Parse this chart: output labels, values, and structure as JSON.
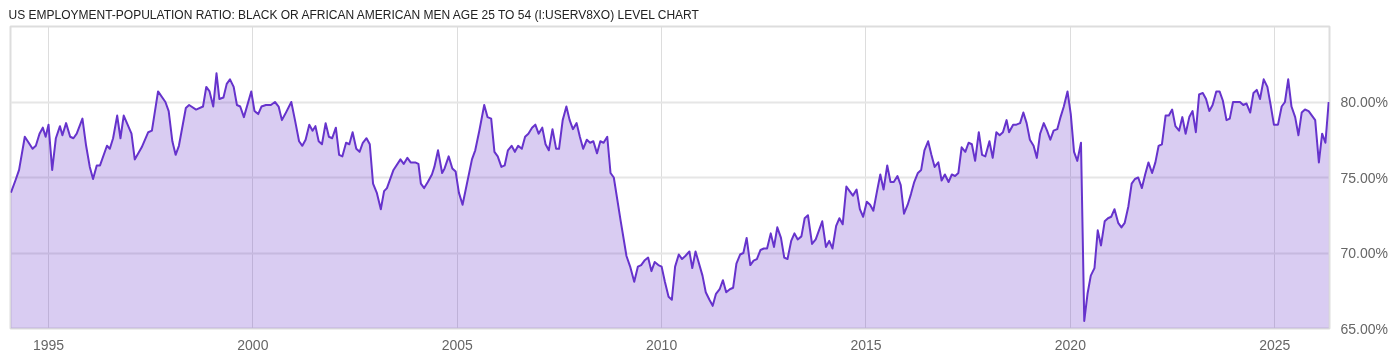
{
  "chart_data": {
    "type": "area",
    "title": "US EMPLOYMENT-POPULATION RATIO: BLACK OR AFRICAN AMERICAN MEN AGE 25 TO 54 (I:USERV8XO) LEVEL CHART",
    "x": [
      1994.08,
      1994.19,
      1994.28,
      1994.42,
      1994.61,
      1994.69,
      1994.78,
      1994.86,
      1994.93,
      1995.0,
      1995.09,
      1995.18,
      1995.28,
      1995.34,
      1995.43,
      1995.53,
      1995.61,
      1995.69,
      1995.83,
      1995.92,
      1996.01,
      1996.09,
      1996.18,
      1996.26,
      1996.43,
      1996.5,
      1996.58,
      1996.68,
      1996.76,
      1996.84,
      1997.03,
      1997.11,
      1997.28,
      1997.44,
      1997.53,
      1997.68,
      1997.86,
      1997.94,
      1998.03,
      1998.11,
      1998.19,
      1998.36,
      1998.44,
      1998.61,
      1998.78,
      1998.86,
      1998.94,
      1999.03,
      1999.11,
      1999.18,
      1999.28,
      1999.36,
      1999.44,
      1999.53,
      1999.61,
      1999.69,
      1999.78,
      1999.96,
      2000.04,
      2000.13,
      2000.21,
      2000.32,
      2000.44,
      2000.54,
      2000.63,
      2000.71,
      2000.79,
      2000.94,
      2001.03,
      2001.13,
      2001.21,
      2001.29,
      2001.38,
      2001.46,
      2001.53,
      2001.61,
      2001.69,
      2001.78,
      2001.86,
      2001.94,
      2002.03,
      2002.11,
      2002.19,
      2002.28,
      2002.36,
      2002.44,
      2002.53,
      2002.61,
      2002.69,
      2002.78,
      2002.86,
      2002.94,
      2003.03,
      2003.13,
      2003.21,
      2003.28,
      2003.44,
      2003.61,
      2003.69,
      2003.78,
      2003.86,
      2003.97,
      2004.05,
      2004.11,
      2004.19,
      2004.28,
      2004.38,
      2004.44,
      2004.53,
      2004.63,
      2004.69,
      2004.79,
      2004.88,
      2004.96,
      2005.04,
      2005.13,
      2005.23,
      2005.36,
      2005.44,
      2005.54,
      2005.66,
      2005.74,
      2005.83,
      2005.91,
      2005.99,
      2006.08,
      2006.16,
      2006.24,
      2006.33,
      2006.41,
      2006.49,
      2006.58,
      2006.66,
      2006.74,
      2006.83,
      2006.91,
      2006.99,
      2007.08,
      2007.16,
      2007.24,
      2007.33,
      2007.42,
      2007.49,
      2007.58,
      2007.67,
      2007.75,
      2007.83,
      2007.92,
      2008.0,
      2008.08,
      2008.17,
      2008.25,
      2008.33,
      2008.42,
      2008.5,
      2008.58,
      2008.67,
      2008.75,
      2008.83,
      2009.0,
      2009.14,
      2009.23,
      2009.33,
      2009.42,
      2009.5,
      2009.58,
      2009.67,
      2009.75,
      2009.83,
      2009.92,
      2010.0,
      2010.08,
      2010.17,
      2010.25,
      2010.33,
      2010.42,
      2010.5,
      2010.58,
      2010.68,
      2010.75,
      2010.83,
      2011.0,
      2011.08,
      2011.17,
      2011.25,
      2011.33,
      2011.42,
      2011.5,
      2011.58,
      2011.67,
      2011.75,
      2011.83,
      2011.92,
      2012.0,
      2012.08,
      2012.17,
      2012.25,
      2012.33,
      2012.42,
      2012.5,
      2012.58,
      2012.67,
      2012.75,
      2012.83,
      2012.92,
      2013.0,
      2013.08,
      2013.17,
      2013.25,
      2013.33,
      2013.42,
      2013.5,
      2013.58,
      2013.68,
      2013.77,
      2013.93,
      2014.02,
      2014.1,
      2014.18,
      2014.27,
      2014.35,
      2014.43,
      2014.52,
      2014.6,
      2014.68,
      2014.77,
      2014.85,
      2014.93,
      2015.02,
      2015.1,
      2015.18,
      2015.27,
      2015.35,
      2015.43,
      2015.52,
      2015.6,
      2015.68,
      2015.77,
      2015.85,
      2015.93,
      2016.02,
      2016.1,
      2016.18,
      2016.27,
      2016.35,
      2016.43,
      2016.52,
      2016.6,
      2016.68,
      2016.77,
      2016.85,
      2016.93,
      2017.02,
      2017.1,
      2017.18,
      2017.26,
      2017.34,
      2017.43,
      2017.51,
      2017.59,
      2017.67,
      2017.76,
      2017.84,
      2017.92,
      2018.02,
      2018.1,
      2018.19,
      2018.27,
      2018.35,
      2018.44,
      2018.5,
      2018.6,
      2018.68,
      2018.77,
      2018.85,
      2018.93,
      2019.01,
      2019.1,
      2019.18,
      2019.26,
      2019.35,
      2019.43,
      2019.51,
      2019.59,
      2019.68,
      2019.76,
      2019.84,
      2019.93,
      2020.01,
      2020.09,
      2020.17,
      2020.26,
      2020.34,
      2020.42,
      2020.5,
      2020.59,
      2020.67,
      2020.75,
      2020.84,
      2020.92,
      2021.0,
      2021.08,
      2021.17,
      2021.25,
      2021.33,
      2021.42,
      2021.5,
      2021.58,
      2021.66,
      2021.75,
      2021.83,
      2021.91,
      2022.0,
      2022.08,
      2022.16,
      2022.24,
      2022.33,
      2022.41,
      2022.49,
      2022.57,
      2022.66,
      2022.74,
      2022.82,
      2022.91,
      2022.99,
      2023.07,
      2023.15,
      2023.24,
      2023.32,
      2023.4,
      2023.48,
      2023.57,
      2023.65,
      2023.73,
      2023.82,
      2023.9,
      2023.98,
      2024.06,
      2024.15,
      2024.23,
      2024.31,
      2024.4,
      2024.48,
      2024.56,
      2024.64,
      2024.73,
      2024.82,
      2024.9,
      2024.98,
      2025.08,
      2025.17,
      2025.25,
      2025.33,
      2025.41,
      2025.5,
      2025.58,
      2025.66,
      2025.74,
      2025.83,
      2025.91,
      2025.99,
      2026.08,
      2026.16,
      2026.24,
      2026.32
    ],
    "series": [
      {
        "color": "#6633cc",
        "values": [
          74.0,
          74.8,
          75.5,
          77.7,
          76.9,
          77.1,
          77.9,
          78.3,
          77.7,
          78.5,
          75.5,
          77.6,
          78.4,
          77.8,
          78.6,
          77.7,
          77.6,
          77.9,
          78.9,
          77.1,
          75.7,
          74.9,
          75.8,
          75.8,
          77.1,
          76.9,
          77.6,
          79.1,
          77.6,
          79.1,
          77.9,
          76.2,
          77.0,
          78.0,
          78.1,
          80.7,
          80.0,
          79.4,
          77.4,
          76.5,
          77.1,
          79.6,
          79.8,
          79.5,
          79.7,
          81.0,
          80.7,
          79.7,
          81.9,
          80.2,
          80.3,
          81.2,
          81.5,
          81.0,
          79.8,
          79.7,
          79.0,
          80.7,
          79.4,
          79.2,
          79.7,
          79.8,
          79.8,
          80.0,
          79.7,
          78.8,
          79.2,
          80.0,
          78.8,
          77.4,
          77.1,
          77.5,
          78.5,
          78.1,
          78.4,
          77.4,
          77.2,
          78.6,
          77.7,
          77.6,
          78.3,
          76.5,
          76.4,
          77.3,
          77.2,
          78.0,
          76.9,
          76.7,
          77.3,
          77.6,
          77.2,
          74.6,
          74.0,
          72.9,
          74.1,
          74.3,
          75.5,
          76.2,
          75.9,
          76.3,
          76.0,
          76.0,
          75.9,
          74.6,
          74.3,
          74.7,
          75.2,
          75.7,
          76.8,
          75.3,
          75.6,
          76.4,
          75.6,
          75.4,
          74.0,
          73.2,
          74.5,
          76.2,
          76.8,
          78.1,
          79.8,
          79.0,
          78.9,
          76.7,
          76.4,
          75.7,
          75.8,
          76.8,
          77.1,
          76.7,
          77.1,
          76.9,
          77.7,
          77.9,
          78.3,
          78.5,
          77.9,
          78.3,
          77.2,
          76.8,
          78.2,
          76.9,
          76.9,
          78.8,
          79.7,
          78.8,
          78.2,
          78.6,
          77.7,
          76.9,
          77.5,
          77.3,
          77.4,
          76.6,
          77.4,
          77.3,
          77.7,
          75.3,
          75.0,
          72.1,
          69.8,
          69.1,
          68.1,
          69.1,
          69.2,
          69.5,
          69.7,
          68.8,
          69.4,
          69.2,
          69.1,
          68.1,
          67.1,
          66.9,
          69.1,
          69.9,
          69.6,
          69.8,
          70.1,
          69.0,
          70.1,
          68.5,
          67.4,
          66.9,
          66.5,
          67.3,
          67.6,
          68.2,
          67.4,
          67.6,
          67.7,
          69.3,
          69.9,
          70.0,
          71.0,
          69.2,
          69.5,
          69.6,
          70.2,
          70.3,
          70.3,
          71.3,
          70.4,
          71.7,
          71.0,
          69.7,
          69.6,
          70.8,
          71.3,
          70.9,
          71.1,
          72.3,
          72.5,
          70.6,
          70.9,
          72.1,
          70.4,
          70.8,
          70.3,
          71.8,
          72.3,
          71.9,
          74.4,
          74.1,
          73.8,
          74.2,
          72.9,
          72.4,
          73.4,
          73.2,
          72.8,
          74.1,
          75.2,
          74.2,
          75.8,
          74.7,
          74.7,
          75.1,
          74.5,
          72.6,
          73.2,
          73.9,
          74.7,
          75.3,
          75.5,
          76.8,
          77.4,
          76.5,
          75.7,
          76.0,
          74.8,
          75.2,
          74.7,
          75.2,
          75.1,
          75.3,
          77.0,
          76.7,
          77.3,
          77.2,
          76.1,
          78.0,
          76.5,
          76.4,
          77.4,
          76.3,
          78.0,
          77.8,
          78.0,
          78.8,
          78.0,
          78.5,
          78.5,
          78.6,
          79.3,
          78.6,
          77.5,
          77.1,
          76.3,
          77.9,
          78.6,
          78.1,
          77.5,
          78.1,
          78.2,
          79.0,
          79.7,
          80.7,
          79.2,
          76.7,
          76.1,
          77.3,
          65.5,
          67.3,
          68.5,
          69.0,
          71.5,
          70.5,
          72.1,
          72.3,
          72.4,
          72.9,
          72.0,
          71.7,
          72.0,
          73.1,
          74.6,
          74.9,
          75.0,
          74.3,
          75.2,
          76.0,
          75.3,
          76.0,
          77.1,
          77.2,
          79.1,
          79.1,
          79.5,
          78.4,
          78.1,
          79.0,
          77.9,
          79.0,
          79.4,
          78.0,
          80.5,
          80.6,
          80.2,
          79.4,
          79.8,
          80.7,
          80.7,
          80.1,
          78.8,
          78.9,
          80.0,
          80.0,
          80.0,
          79.8,
          79.9,
          79.3,
          80.6,
          80.8,
          80.2,
          81.5,
          81.0,
          79.8,
          78.5,
          78.5,
          79.7,
          80.0,
          81.5,
          79.7,
          79.0,
          77.8,
          79.3,
          79.5,
          79.4,
          79.1,
          78.8,
          76.0,
          77.9,
          77.3,
          80.0
        ]
      }
    ],
    "xlim": [
      1994.07,
      2026.34
    ],
    "xticks": [
      1995,
      2000,
      2005,
      2010,
      2015,
      2020,
      2025
    ],
    "ylim": [
      65,
      85
    ],
    "yticks": [
      {
        "value": 65,
        "label": "65.00%"
      },
      {
        "value": 70,
        "label": "70.00%"
      },
      {
        "value": 75,
        "label": "75.00%"
      },
      {
        "value": 80,
        "label": "80.00%"
      }
    ],
    "grid": true,
    "line_style": "solid"
  }
}
